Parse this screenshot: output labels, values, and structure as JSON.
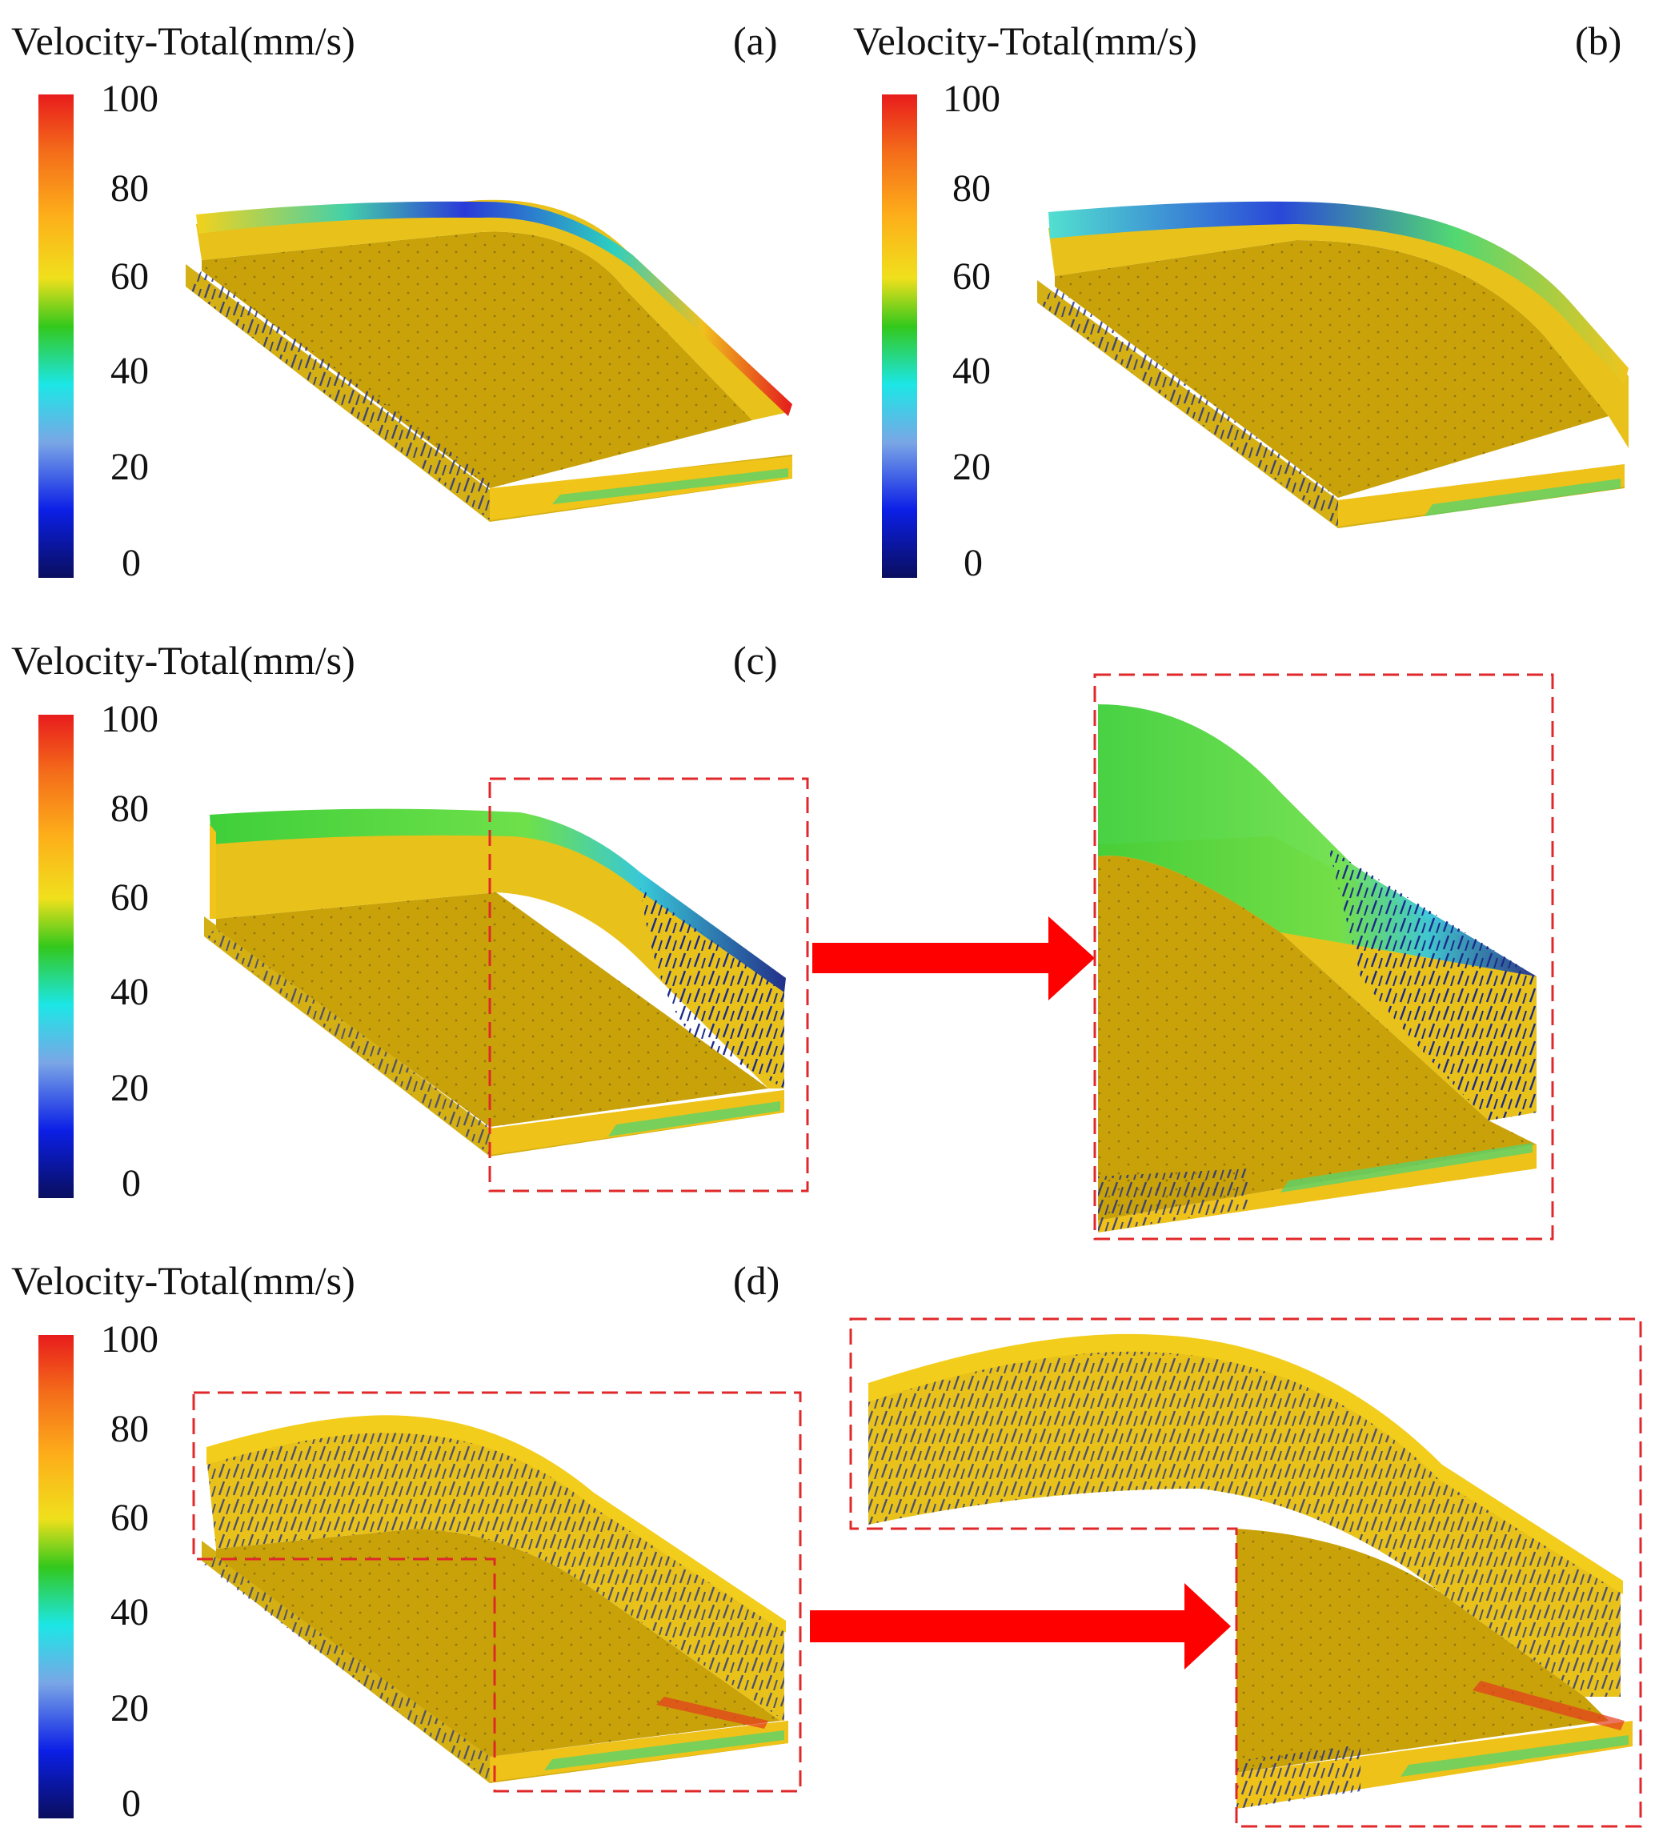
{
  "figure": {
    "panels": [
      {
        "id": "a",
        "title": "Velocity-Total(mm/s)",
        "label": "(a)"
      },
      {
        "id": "b",
        "title": "Velocity-Total(mm/s)",
        "label": "(b)"
      },
      {
        "id": "c",
        "title": "Velocity-Total(mm/s)",
        "label": "(c)"
      },
      {
        "id": "d",
        "title": "Velocity-Total(mm/s)",
        "label": "(d)"
      }
    ],
    "colorbar": {
      "ticks": [
        "100",
        "80",
        "60",
        "40",
        "20",
        "0"
      ],
      "colors": [
        "#d7191c",
        "#f46d1a",
        "#fdae1a",
        "#f5e51c",
        "#22c51c",
        "#1ce6e6",
        "#6ba8e8",
        "#0b1fe6",
        "#0a0e6b"
      ]
    },
    "colors": {
      "surface": "#c9a20a",
      "surface_light": "#e8be18",
      "surface_dark": "#a8860a",
      "zoom_box": "#e0282b",
      "arrow": "#ff0000"
    }
  }
}
